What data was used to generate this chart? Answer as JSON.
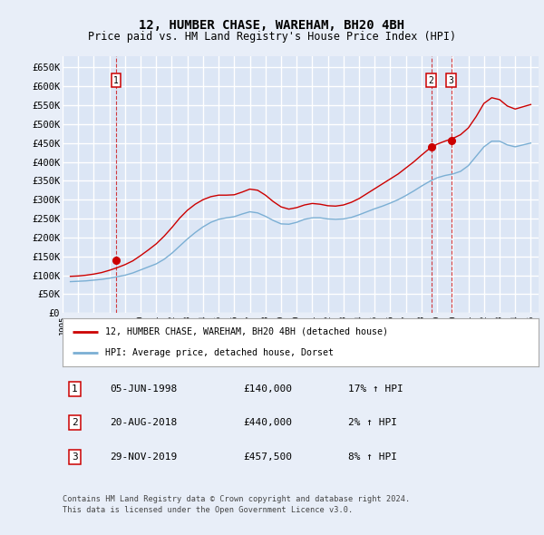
{
  "title": "12, HUMBER CHASE, WAREHAM, BH20 4BH",
  "subtitle": "Price paid vs. HM Land Registry's House Price Index (HPI)",
  "background_color": "#e8eef8",
  "plot_bg_color": "#dce6f5",
  "grid_color": "#ffffff",
  "ylim": [
    0,
    680000
  ],
  "yticks": [
    0,
    50000,
    100000,
    150000,
    200000,
    250000,
    300000,
    350000,
    400000,
    450000,
    500000,
    550000,
    600000,
    650000
  ],
  "ytick_labels": [
    "£0",
    "£50K",
    "£100K",
    "£150K",
    "£200K",
    "£250K",
    "£300K",
    "£350K",
    "£400K",
    "£450K",
    "£500K",
    "£550K",
    "£600K",
    "£650K"
  ],
  "sale_dates": [
    "1998-06-05",
    "2018-08-20",
    "2019-11-29"
  ],
  "sale_prices": [
    140000,
    440000,
    457500
  ],
  "sale_labels": [
    "1",
    "2",
    "3"
  ],
  "sale_pct": [
    "17% ↑ HPI",
    "2% ↑ HPI",
    "8% ↑ HPI"
  ],
  "sale_date_labels": [
    "05-JUN-1998",
    "20-AUG-2018",
    "29-NOV-2019"
  ],
  "red_color": "#cc0000",
  "blue_color": "#7bafd4",
  "legend_label_red": "12, HUMBER CHASE, WAREHAM, BH20 4BH (detached house)",
  "legend_label_blue": "HPI: Average price, detached house, Dorset",
  "footer_line1": "Contains HM Land Registry data © Crown copyright and database right 2024.",
  "footer_line2": "This data is licensed under the Open Government Licence v3.0.",
  "hpi_x": [
    1995.5,
    1996.0,
    1996.5,
    1997.0,
    1997.5,
    1998.0,
    1998.5,
    1999.0,
    1999.5,
    2000.0,
    2000.5,
    2001.0,
    2001.5,
    2002.0,
    2002.5,
    2003.0,
    2003.5,
    2004.0,
    2004.5,
    2005.0,
    2005.5,
    2006.0,
    2006.5,
    2007.0,
    2007.5,
    2008.0,
    2008.5,
    2009.0,
    2009.5,
    2010.0,
    2010.5,
    2011.0,
    2011.5,
    2012.0,
    2012.5,
    2013.0,
    2013.5,
    2014.0,
    2014.5,
    2015.0,
    2015.5,
    2016.0,
    2016.5,
    2017.0,
    2017.5,
    2018.0,
    2018.5,
    2019.0,
    2019.5,
    2020.0,
    2020.5,
    2021.0,
    2021.5,
    2022.0,
    2022.5,
    2023.0,
    2023.5,
    2024.0,
    2024.5,
    2025.0
  ],
  "hpi_values": [
    83000,
    84000,
    85000,
    87000,
    89000,
    92000,
    96000,
    100000,
    106000,
    114000,
    122000,
    130000,
    142000,
    158000,
    177000,
    196000,
    213000,
    228000,
    240000,
    248000,
    252000,
    255000,
    262000,
    268000,
    265000,
    256000,
    245000,
    236000,
    235000,
    240000,
    248000,
    252000,
    252000,
    249000,
    248000,
    249000,
    253000,
    260000,
    268000,
    276000,
    283000,
    291000,
    300000,
    311000,
    323000,
    336000,
    348000,
    358000,
    364000,
    368000,
    375000,
    390000,
    415000,
    440000,
    455000,
    455000,
    445000,
    440000,
    445000,
    450000
  ],
  "red_x": [
    1995.5,
    1996.0,
    1996.5,
    1997.0,
    1997.5,
    1998.0,
    1998.5,
    1999.0,
    1999.5,
    2000.0,
    2000.5,
    2001.0,
    2001.5,
    2002.0,
    2002.5,
    2003.0,
    2003.5,
    2004.0,
    2004.5,
    2005.0,
    2005.5,
    2006.0,
    2006.5,
    2007.0,
    2007.5,
    2008.0,
    2008.5,
    2009.0,
    2009.5,
    2010.0,
    2010.5,
    2011.0,
    2011.5,
    2012.0,
    2012.5,
    2013.0,
    2013.5,
    2014.0,
    2014.5,
    2015.0,
    2015.5,
    2016.0,
    2016.5,
    2017.0,
    2017.5,
    2018.0,
    2018.5,
    2019.0,
    2019.5,
    2020.0,
    2020.5,
    2021.0,
    2021.5,
    2022.0,
    2022.5,
    2023.0,
    2023.5,
    2024.0,
    2024.5,
    2025.0
  ],
  "red_values": [
    97000,
    98000,
    100000,
    103000,
    107000,
    113000,
    120000,
    128000,
    138000,
    152000,
    167000,
    183000,
    203000,
    226000,
    251000,
    272000,
    288000,
    300000,
    308000,
    312000,
    312000,
    313000,
    320000,
    328000,
    325000,
    312000,
    295000,
    281000,
    275000,
    279000,
    286000,
    290000,
    288000,
    284000,
    283000,
    286000,
    293000,
    303000,
    316000,
    329000,
    342000,
    355000,
    368000,
    384000,
    400000,
    418000,
    435000,
    447000,
    455000,
    462000,
    472000,
    490000,
    520000,
    555000,
    570000,
    565000,
    548000,
    540000,
    546000,
    552000
  ]
}
